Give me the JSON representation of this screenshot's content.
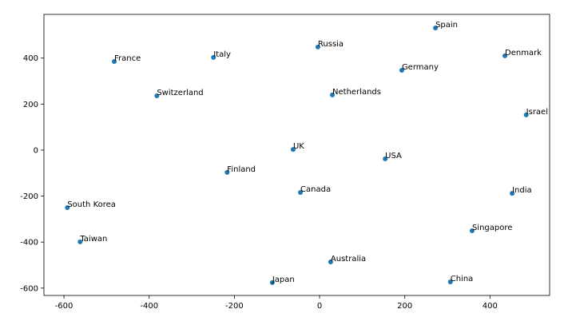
{
  "chart_data": {
    "type": "scatter",
    "color": "#1f77b4",
    "labels": [
      "Spain",
      "Russia",
      "France",
      "Italy",
      "Denmark",
      "Germany",
      "Switzerland",
      "Netherlands",
      "Israel",
      "UK",
      "USA",
      "Finland",
      "Canada",
      "India",
      "South Korea",
      "Singapore",
      "Taiwan",
      "Australia",
      "Japan",
      "China"
    ],
    "x": [
      272,
      -4,
      -482,
      -249,
      435,
      193,
      -382,
      30,
      485,
      -62,
      154,
      -217,
      -45,
      452,
      -592,
      358,
      -562,
      26,
      -111,
      307
    ],
    "y": [
      531,
      448,
      385,
      403,
      410,
      347,
      236,
      240,
      153,
      3,
      -38,
      -97,
      -184,
      -188,
      -250,
      -351,
      -399,
      -486,
      -576,
      -573
    ],
    "xlim": [
      -647,
      540
    ],
    "ylim": [
      -632,
      590
    ],
    "xticks": [
      -600,
      -400,
      -200,
      0,
      200,
      400
    ],
    "yticks": [
      -600,
      -400,
      -200,
      0,
      200,
      400
    ]
  }
}
